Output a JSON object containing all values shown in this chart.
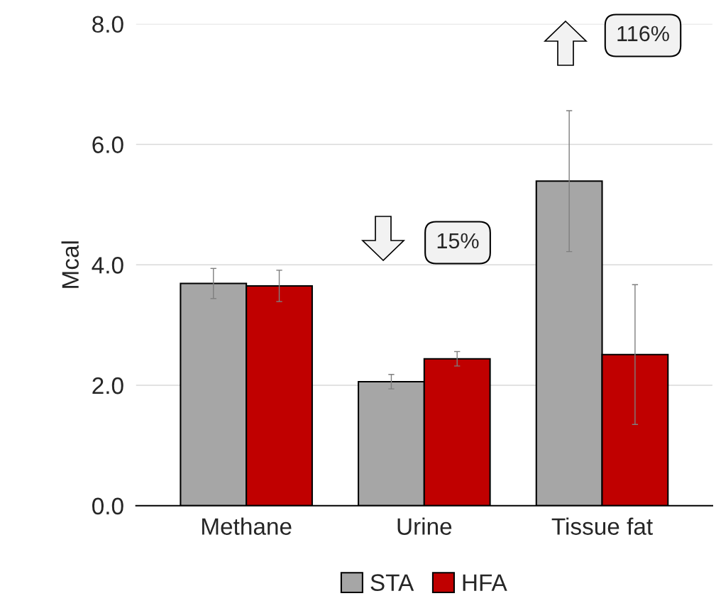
{
  "chart_data": {
    "type": "bar",
    "ylabel": "Mcal",
    "categories": [
      "Methane",
      "Urine",
      "Tissue fat"
    ],
    "series": [
      {
        "name": "STA",
        "color": "#a6a6a6",
        "values": [
          3.69,
          2.06,
          5.39
        ],
        "errors": [
          0.25,
          0.12,
          1.17
        ]
      },
      {
        "name": "HFA",
        "color": "#c00000",
        "values": [
          3.65,
          2.44,
          2.51
        ],
        "errors": [
          0.26,
          0.12,
          1.16
        ]
      }
    ],
    "ylim": [
      0,
      8
    ],
    "yticks": [
      {
        "value": 0,
        "label": "0.0"
      },
      {
        "value": 2,
        "label": "2.0"
      },
      {
        "value": 4,
        "label": "4.0"
      },
      {
        "value": 6,
        "label": "6.0"
      },
      {
        "value": 8,
        "label": "8.0"
      }
    ],
    "annotations": [
      "15%",
      "116%"
    ],
    "grid": "y",
    "legend": "bottom"
  }
}
